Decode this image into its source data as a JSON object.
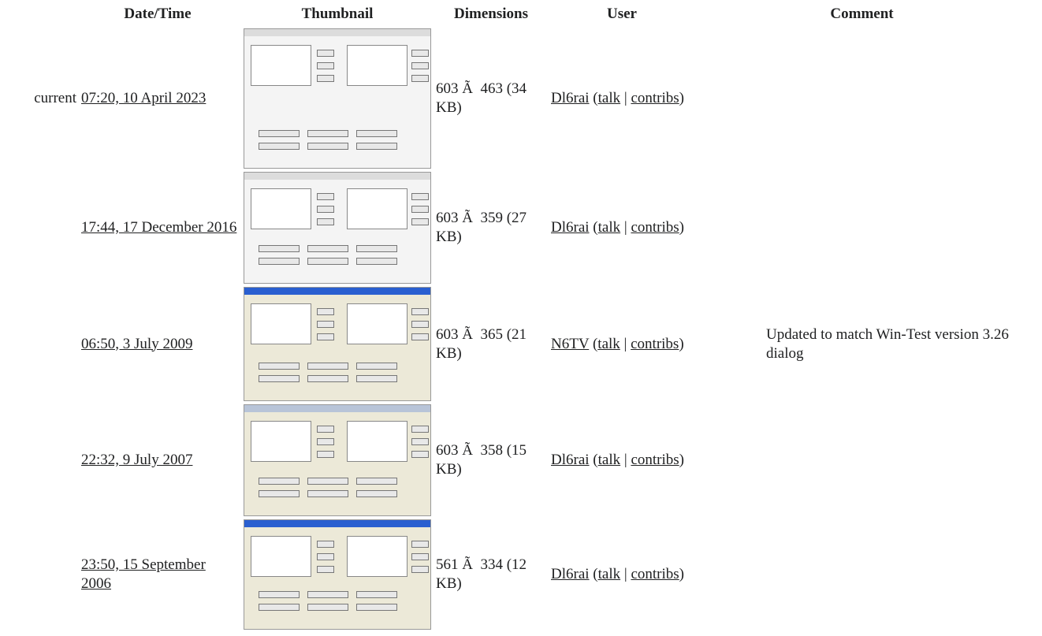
{
  "header": {
    "columns": [
      "Date/Time",
      "Thumbnail",
      "Dimensions",
      "User",
      "Comment"
    ]
  },
  "table": {
    "rows": [
      {
        "status": "current",
        "date": "07:20, 10 April 2023",
        "dimensions": "603 Ã  463 (34 KB)",
        "user": "Dl6rai",
        "user_tools": [
          "(",
          "talk",
          " |",
          "contribs",
          ")"
        ],
        "comment": null
      },
      {
        "status": null,
        "date": "17:44, 17 December 2016",
        "dimensions": "603 Ã  359 (27 KB)",
        "user": "Dl6rai",
        "user_tools": [
          "(",
          "talk",
          " |",
          "contribs",
          ")"
        ],
        "comment": null
      },
      {
        "status": null,
        "date": "06:50, 3 July 2009",
        "dimensions": "603 Ã  365 (21 KB)",
        "user": "N6TV",
        "user_tools": [
          "(",
          "talk",
          " |",
          "contribs",
          ")"
        ],
        "comment": "Updated to match Win-Test version 3.26 dialog"
      },
      {
        "status": null,
        "date": "22:32, 9 July 2007",
        "dimensions": "603 Ã  358 (15 KB)",
        "user": "Dl6rai",
        "user_tools": [
          "(",
          "talk",
          " |",
          "contribs",
          ")"
        ],
        "comment": null
      },
      {
        "status": null,
        "date": "23:50, 15 September 2006",
        "dimensions": "561 Ã  334 (12 KB)",
        "user": "Dl6rai",
        "user_tools": [
          "(",
          "talk",
          " |",
          "contribs",
          ")"
        ],
        "comment": null
      }
    ]
  }
}
